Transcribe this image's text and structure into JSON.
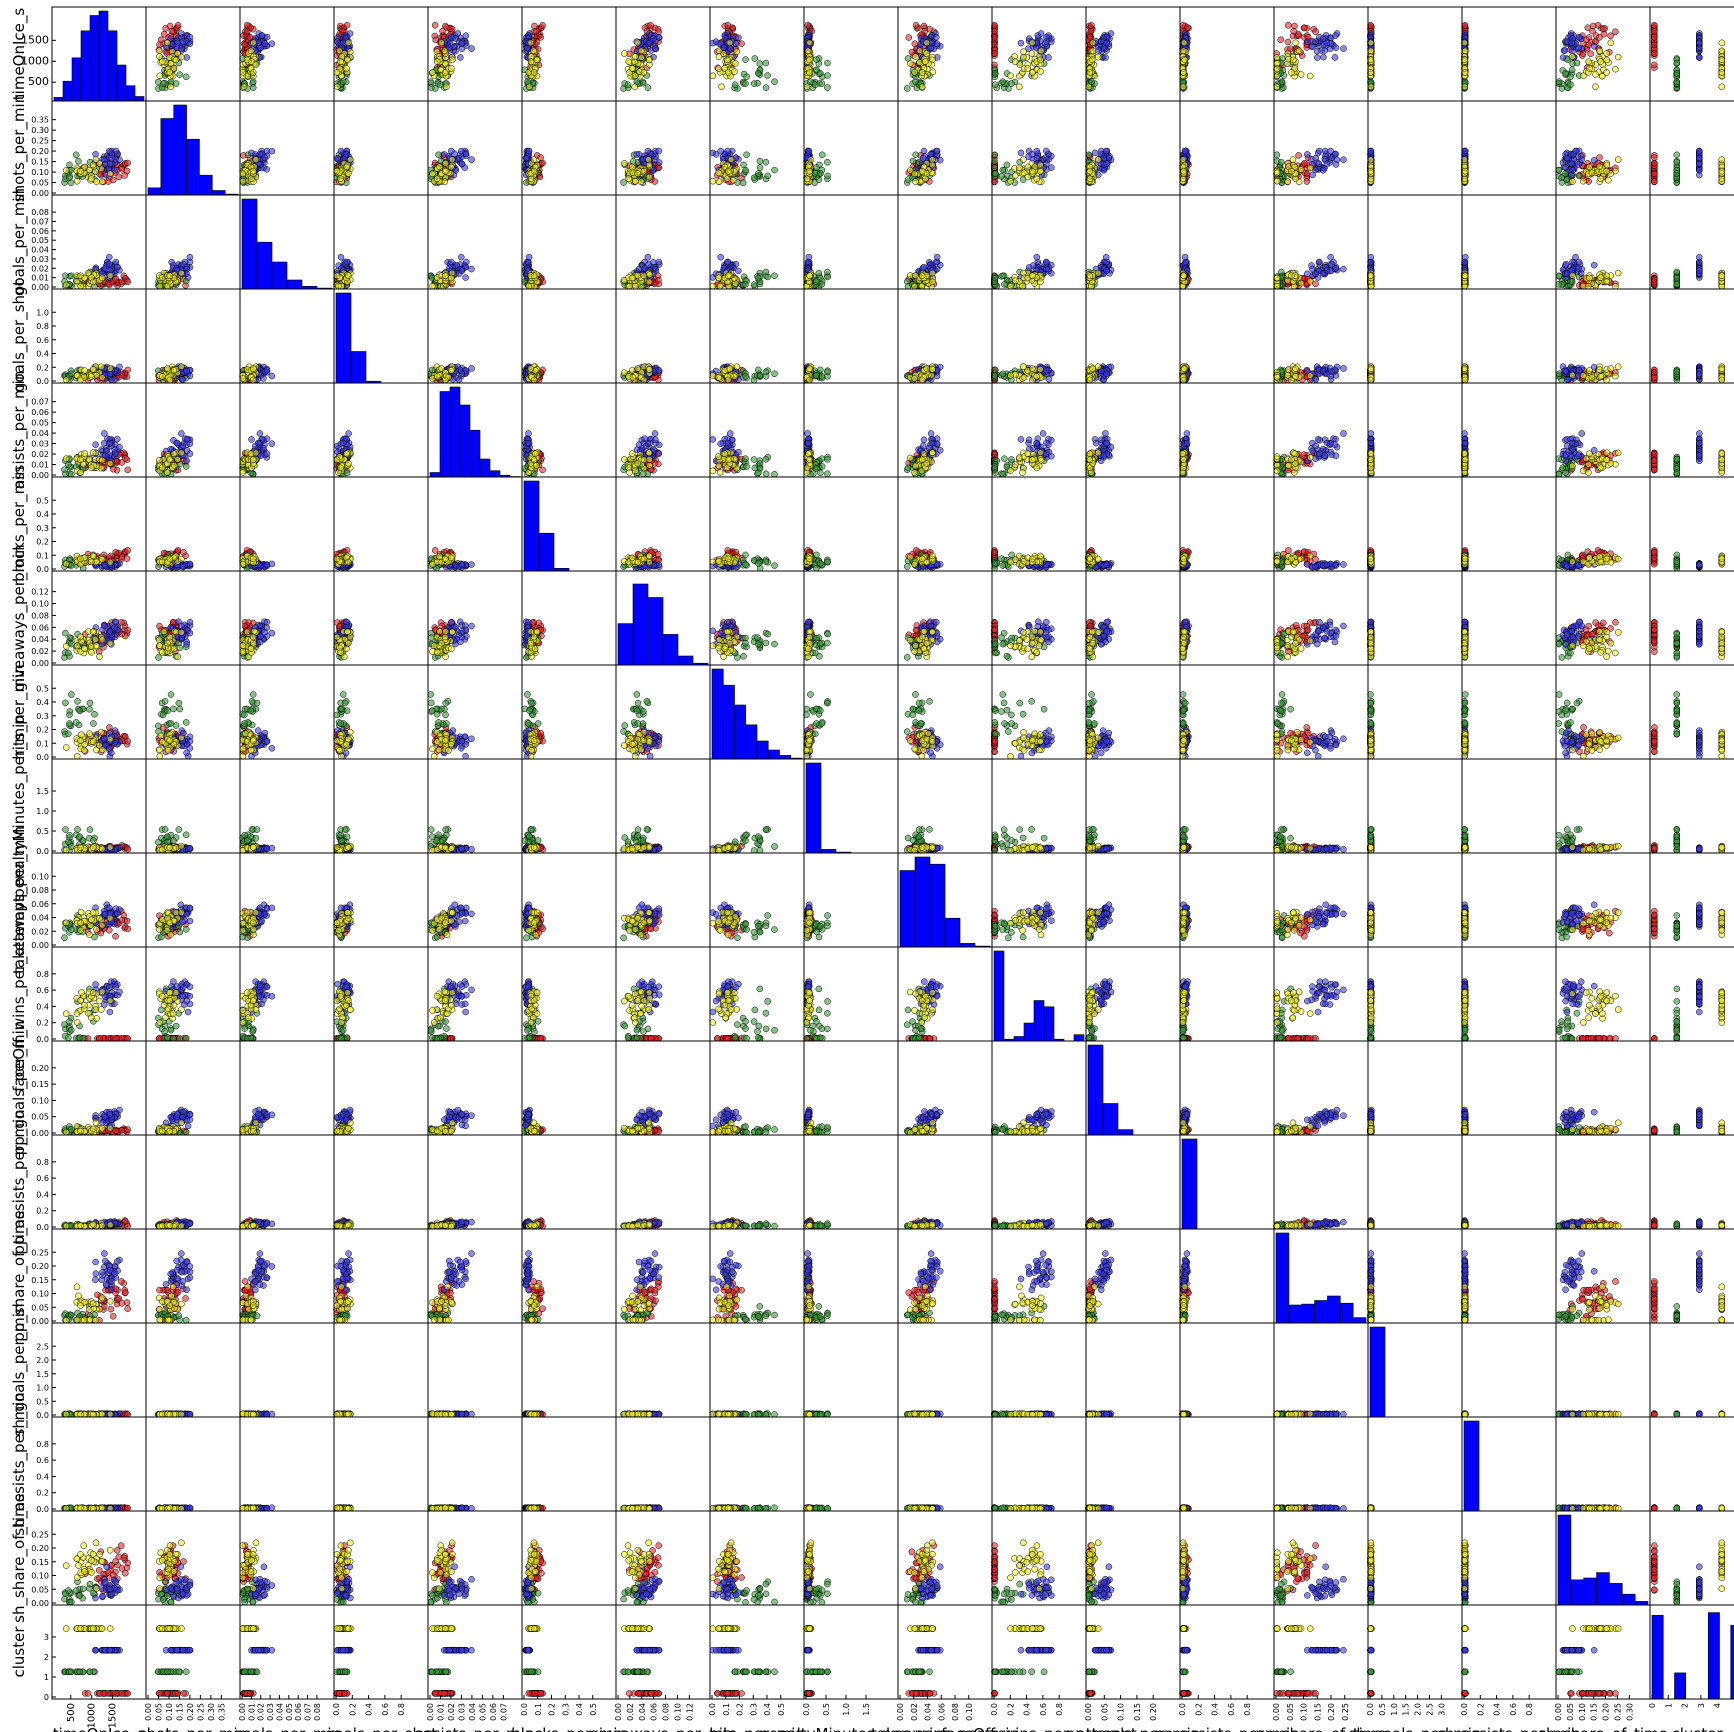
{
  "chart_data": {
    "type": "scatter",
    "variables": [
      {
        "name": "timeOnIce_s",
        "ylim": [
          0,
          1850
        ],
        "yticks": [
          "500",
          "1000",
          "1500"
        ],
        "xlim": [
          0,
          1800
        ],
        "xticks": [
          "500",
          "1000",
          "1500"
        ]
      },
      {
        "name": "shots_per_min",
        "ylim": [
          0,
          0.38
        ],
        "yticks": [
          "0.00",
          "0.05",
          "0.10",
          "0.15",
          "0.20",
          "0.25",
          "0.30",
          "0.35"
        ],
        "xlim": [
          0,
          0.4
        ],
        "xticks": [
          "0.00",
          "0.05",
          "0.10",
          "0.15",
          "0.20",
          "0.25",
          "0.30",
          "0.35"
        ]
      },
      {
        "name": "goals_per_min",
        "ylim": [
          0,
          0.08
        ],
        "yticks": [
          "0.00",
          "0.01",
          "0.02",
          "0.03",
          "0.04",
          "0.05",
          "0.06",
          "0.07",
          "0.08"
        ],
        "xlim": [
          0,
          0.09
        ],
        "xticks": [
          "0.00",
          "0.01",
          "0.02",
          "0.03",
          "0.04",
          "0.05",
          "0.06",
          "0.07",
          "0.08"
        ]
      },
      {
        "name": "goals_per_shot",
        "ylim": [
          0,
          1.05
        ],
        "yticks": [
          "0.0",
          "0.2",
          "0.4",
          "0.6",
          "0.8",
          "1.0"
        ],
        "xlim": [
          0,
          1.0
        ],
        "xticks": [
          "0.0",
          "0.2",
          "0.4",
          "0.6",
          "0.8"
        ]
      },
      {
        "name": "assists_per_min",
        "ylim": [
          0,
          0.075
        ],
        "yticks": [
          "0.00",
          "0.01",
          "0.02",
          "0.03",
          "0.04",
          "0.05",
          "0.06",
          "0.07"
        ],
        "xlim": [
          0,
          0.08
        ],
        "xticks": [
          "0.00",
          "0.01",
          "0.02",
          "0.03",
          "0.04",
          "0.05",
          "0.06",
          "0.07"
        ]
      },
      {
        "name": "blocks_per_min",
        "ylim": [
          0,
          0.58
        ],
        "yticks": [
          "0.0",
          "0.1",
          "0.2",
          "0.3",
          "0.4",
          "0.5"
        ],
        "xlim": [
          0,
          0.6
        ],
        "xticks": [
          "0.0",
          "0.1",
          "0.2",
          "0.3",
          "0.4",
          "0.5"
        ]
      },
      {
        "name": "giveaways_per_min",
        "ylim": [
          0,
          0.122
        ],
        "yticks": [
          "0.00",
          "0.02",
          "0.04",
          "0.06",
          "0.08",
          "0.10",
          "0.12"
        ],
        "xlim": [
          0,
          0.12
        ],
        "xticks": [
          "0.00",
          "0.02",
          "0.04",
          "0.06",
          "0.08",
          "0.10",
          "0.12"
        ]
      },
      {
        "name": "hits_per_min",
        "ylim": [
          0,
          0.53
        ],
        "yticks": [
          "0.0",
          "0.1",
          "0.2",
          "0.3",
          "0.4",
          "0.5"
        ],
        "xlim": [
          0,
          0.55
        ],
        "xticks": [
          "0.0",
          "0.1",
          "0.2",
          "0.3",
          "0.4",
          "0.5"
        ]
      },
      {
        "name": "penaltyMinutes_per_min",
        "ylim": [
          0,
          1.9
        ],
        "yticks": [
          "0.0",
          "0.5",
          "1.0",
          "1.5"
        ],
        "xlim": [
          0,
          2.0
        ],
        "xticks": [
          "0.0",
          "0.5",
          "1.0",
          "1.5"
        ]
      },
      {
        "name": "takeaways_per_min",
        "ylim": [
          0,
          0.112
        ],
        "yticks": [
          "0.00",
          "0.02",
          "0.04",
          "0.06",
          "0.08",
          "0.10"
        ],
        "xlim": [
          0,
          0.12
        ],
        "xticks": [
          "0.00",
          "0.02",
          "0.04",
          "0.06",
          "0.08",
          "0.10"
        ]
      },
      {
        "name": "faceOff_wins_per_attempt",
        "ylim": [
          0,
          1.0
        ],
        "yticks": [
          "0.0",
          "0.2",
          "0.4",
          "0.6",
          "0.8"
        ],
        "xlim": [
          0,
          1.0
        ],
        "xticks": [
          "0.0",
          "0.2",
          "0.4",
          "0.6",
          "0.8"
        ]
      },
      {
        "name": "pp_goals_per_min",
        "ylim": [
          0,
          0.21
        ],
        "yticks": [
          "0.00",
          "0.05",
          "0.10",
          "0.15",
          "0.20"
        ],
        "xlim": [
          0,
          0.23
        ],
        "xticks": [
          "0.00",
          "0.05",
          "0.10",
          "0.15",
          "0.20"
        ]
      },
      {
        "name": "pp_assists_per_min",
        "ylim": [
          0,
          0.95
        ],
        "yticks": [
          "0.0",
          "0.2",
          "0.4",
          "0.6",
          "0.8"
        ],
        "xlim": [
          0,
          1.0
        ],
        "xticks": [
          "0.0",
          "0.2",
          "0.4",
          "0.6",
          "0.8"
        ]
      },
      {
        "name": "pp_share_of_time",
        "ylim": [
          0,
          0.28
        ],
        "yticks": [
          "0.00",
          "0.05",
          "0.10",
          "0.15",
          "0.20",
          "0.25"
        ],
        "xlim": [
          0,
          0.3
        ],
        "xticks": [
          "0.00",
          "0.05",
          "0.10",
          "0.15",
          "0.20",
          "0.25"
        ]
      },
      {
        "name": "sh_goals_per_min",
        "ylim": [
          0,
          2.9
        ],
        "yticks": [
          "0.0",
          "0.5",
          "1.0",
          "1.5",
          "2.0",
          "2.5"
        ],
        "xlim": [
          0,
          3.0
        ],
        "xticks": [
          "0.0",
          "0.5",
          "1.0",
          "1.5",
          "2.0",
          "2.5",
          "3.0"
        ]
      },
      {
        "name": "sh_assists_per_min",
        "ylim": [
          0,
          1.0
        ],
        "yticks": [
          "0.0",
          "0.2",
          "0.4",
          "0.6",
          "0.8"
        ],
        "xlim": [
          0,
          1.0
        ],
        "xticks": [
          "0.0",
          "0.2",
          "0.4",
          "0.6",
          "0.8"
        ]
      },
      {
        "name": "sh_share_of_time",
        "ylim": [
          0,
          0.275
        ],
        "yticks": [
          "0.00",
          "0.05",
          "0.10",
          "0.15",
          "0.20",
          "0.25"
        ],
        "xlim": [
          0,
          0.35
        ],
        "xticks": [
          "0.00",
          "0.05",
          "0.10",
          "0.15",
          "0.20",
          "0.25",
          "0.30"
        ]
      },
      {
        "name": "cluster",
        "ylim": [
          -0.2,
          4.0
        ],
        "yticks": [
          "0",
          "1",
          "2",
          "3"
        ],
        "xlim": [
          0,
          4
        ],
        "xticks": [
          "0",
          "1",
          "2",
          "3",
          "4"
        ]
      }
    ],
    "clusters": [
      {
        "value": 0,
        "color": "#e8272a"
      },
      {
        "value": 1,
        "color": "#3b9a3b"
      },
      {
        "value": 2,
        "color": "#3a3ae6"
      },
      {
        "value": 3,
        "color": "#f0ee2c"
      }
    ],
    "histogram_color": "#0000ff",
    "diagonal_histograms": [
      [
        0.04,
        0.22,
        0.48,
        0.78,
        0.95,
        1.0,
        0.78,
        0.4,
        0.17,
        0.05
      ],
      [
        0.08,
        0.85,
        1.0,
        0.62,
        0.22,
        0.05,
        0.01
      ],
      [
        1.0,
        0.52,
        0.3,
        0.1,
        0.03,
        0.01
      ],
      [
        1.0,
        0.35,
        0.02
      ],
      [
        0.05,
        0.95,
        1.0,
        0.8,
        0.52,
        0.2,
        0.07,
        0.02,
        0.005
      ],
      [
        1.0,
        0.42,
        0.03
      ],
      [
        0.46,
        0.9,
        0.75,
        0.34,
        0.1,
        0.02
      ],
      [
        1.0,
        0.82,
        0.6,
        0.38,
        0.2,
        0.1,
        0.04,
        0.01
      ],
      [
        1.0,
        0.04,
        0.01
      ],
      [
        0.85,
        1.0,
        0.92,
        0.32,
        0.04,
        0.01
      ],
      [
        1.0,
        0.02,
        0.05,
        0.2,
        0.45,
        0.38,
        0.02,
        0.0,
        0.07
      ],
      [
        1.0,
        0.35,
        0.06
      ],
      [
        1.0
      ],
      [
        1.0,
        0.2,
        0.21,
        0.25,
        0.3,
        0.22,
        0.06
      ],
      [
        1.0
      ],
      [
        1.0
      ],
      [
        1.0,
        0.28,
        0.3,
        0.36,
        0.24,
        0.12,
        0.04
      ],
      [
        0.93,
        0.0,
        0.29,
        0.0,
        0.0,
        0.96,
        0.0,
        0.82
      ]
    ],
    "xlabel_note": "axis labels are the variable names along the bottom and left edges",
    "grid": false,
    "legend": "none"
  }
}
